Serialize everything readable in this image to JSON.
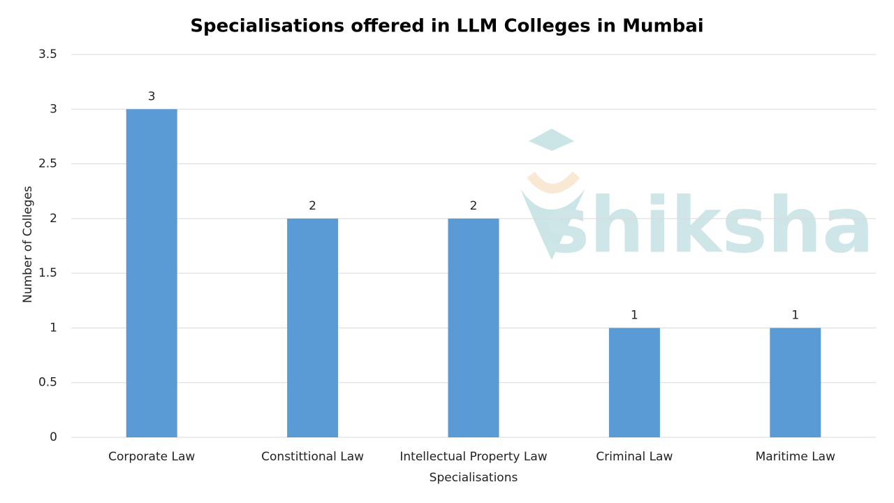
{
  "chart_data": {
    "type": "bar",
    "title": "Specialisations offered in LLM Colleges in Mumbai",
    "x_label": "Specialisations",
    "y_label": "Number of Colleges",
    "categories": [
      "Corporate Law",
      "Constittional Law",
      "Intellectual Property Law",
      "Criminal Law",
      "Maritime Law"
    ],
    "values": [
      3,
      2,
      2,
      1,
      1
    ],
    "color": "#5b9bd5",
    "ylim": [
      0,
      3.5
    ],
    "yticks": [
      0,
      0.5,
      1,
      1.5,
      2,
      2.5,
      3,
      3.5
    ],
    "grid": true,
    "watermark": "shiksha"
  }
}
